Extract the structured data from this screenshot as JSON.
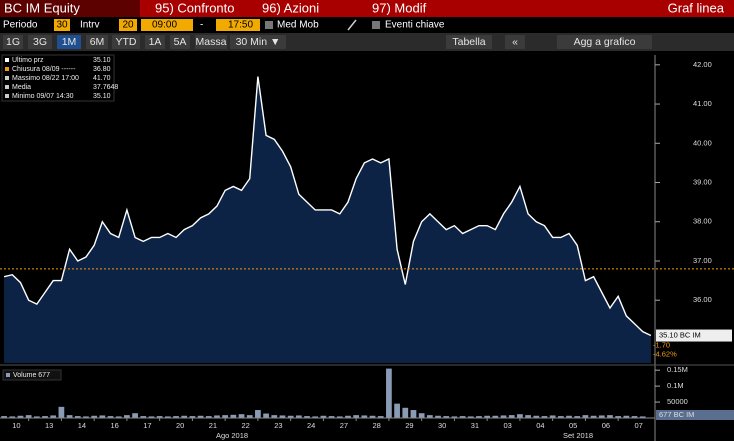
{
  "header": {
    "security": "BC IM Equity",
    "menu": [
      "95) Confronto",
      "96) Azioni",
      "97) Modif"
    ],
    "view": "Graf linea"
  },
  "controls": {
    "period_label": "Periodo",
    "period": "30",
    "intrv_label": "Intrv",
    "intrv": "20",
    "start": "09:00",
    "dash": "-",
    "end": "17:50",
    "med_mob": "Med Mob",
    "eventi": "Eventi chiave"
  },
  "buttons": [
    "1G",
    "3G",
    "1M",
    "6M",
    "YTD",
    "1A",
    "5A",
    "Massa",
    "30 Min ▼",
    "Tabella",
    "«",
    "Agg a grafico"
  ],
  "chart_data": {
    "type": "line",
    "categories": [
      null,
      null,
      "10",
      null,
      null,
      null,
      "13",
      null,
      null,
      null,
      "14",
      null,
      null,
      null,
      "16",
      null,
      null,
      null,
      "17",
      null,
      null,
      null,
      "20",
      null,
      null,
      null,
      "21",
      null,
      null,
      null,
      "22",
      null,
      null,
      null,
      "23",
      null,
      null,
      null,
      "24",
      null,
      null,
      null,
      "27",
      null,
      null,
      null,
      "28",
      null,
      null,
      null,
      "29",
      null,
      null,
      null,
      "30",
      null,
      null,
      null,
      "31",
      null,
      null,
      null,
      "03",
      null,
      null,
      null,
      "04",
      null,
      null,
      null,
      "05",
      null,
      null,
      null,
      "06",
      null,
      null,
      null,
      "07",
      null
    ],
    "month_labels": [
      "Ago 2018",
      "Set 2018"
    ],
    "series": [
      {
        "name": "Ultimo prz",
        "color": "#ffffff",
        "fill": "#0c2346",
        "values": [
          36.6,
          36.65,
          36.45,
          36.0,
          35.9,
          36.2,
          36.5,
          36.5,
          37.3,
          37.0,
          37.1,
          37.4,
          38.0,
          37.7,
          37.6,
          38.3,
          37.6,
          37.5,
          37.6,
          37.6,
          37.7,
          37.6,
          37.8,
          37.9,
          38.1,
          38.2,
          38.4,
          38.8,
          38.9,
          38.8,
          39.1,
          41.7,
          40.2,
          40.1,
          39.8,
          39.4,
          38.7,
          38.5,
          38.3,
          38.3,
          38.3,
          38.2,
          38.5,
          39.1,
          39.5,
          39.6,
          39.5,
          39.6,
          37.3,
          36.4,
          37.5,
          38.0,
          38.2,
          38.0,
          37.8,
          37.9,
          37.7,
          37.8,
          37.9,
          37.9,
          37.8,
          38.2,
          38.5,
          38.9,
          38.2,
          38.0,
          37.9,
          37.6,
          37.6,
          37.7,
          37.4,
          36.5,
          36.6,
          36.2,
          35.8,
          36.1,
          35.6,
          35.4,
          35.2,
          35.1
        ]
      }
    ],
    "ylim": [
      34.4,
      42.25
    ],
    "yticks": [
      {
        "value": 42,
        "label": "42.00"
      },
      {
        "value": 41,
        "label": "41.00"
      },
      {
        "value": 40,
        "label": "40.00"
      },
      {
        "value": 39,
        "label": "39.00"
      },
      {
        "value": 38,
        "label": "38.00"
      },
      {
        "value": 37,
        "label": "37.00"
      },
      {
        "value": 36,
        "label": "36.00"
      }
    ],
    "legend": {
      "names": [
        "Ultimo prz",
        "Chiusura 08/09 ------",
        "Massimo 08/22 17:00",
        "Media",
        "Minimo 09/07 14:30"
      ],
      "colors": [
        "#ffffff",
        "#f39c12",
        "#cccccc",
        "#cccccc",
        "#cccccc"
      ],
      "values": [
        35.1,
        36.8,
        41.7,
        37.7648,
        35.1
      ],
      "value_labels": [
        "35.10",
        "36.80",
        "41.70",
        "37.7648",
        "35.10"
      ]
    },
    "price_tag": "35.10 BC IM",
    "change": {
      "values": [
        -1.7,
        -4.62
      ],
      "value_labels": [
        "-1.70",
        "-4.62%"
      ]
    },
    "volume": {
      "name": "Volume 677",
      "tag": "677 BC IM",
      "color": "#8a9bb5",
      "values": [
        6000,
        5000,
        7000,
        9000,
        5000,
        6000,
        8000,
        35000,
        9000,
        6000,
        5000,
        7000,
        8000,
        6000,
        5000,
        9000,
        15000,
        6000,
        5000,
        6000,
        5000,
        6000,
        7000,
        6000,
        7000,
        6000,
        8000,
        9000,
        10000,
        12000,
        9000,
        25000,
        14000,
        9000,
        8000,
        7000,
        8000,
        6000,
        5000,
        7000,
        6000,
        5000,
        7000,
        9000,
        8000,
        7000,
        6000,
        155000,
        45000,
        32000,
        25000,
        15000,
        9000,
        7000,
        6000,
        5000,
        6000,
        5000,
        6000,
        7000,
        7000,
        8000,
        9000,
        12000,
        9000,
        7000,
        6000,
        8000,
        6000,
        7000,
        6000,
        9000,
        7000,
        8000,
        9000,
        6000,
        7000,
        6000,
        5000,
        677
      ],
      "ylim": [
        0,
        160000
      ],
      "yticks": [
        {
          "value": 150000,
          "label": "0.15M"
        },
        {
          "value": 100000,
          "label": "0.1M"
        },
        50000
      ]
    }
  }
}
